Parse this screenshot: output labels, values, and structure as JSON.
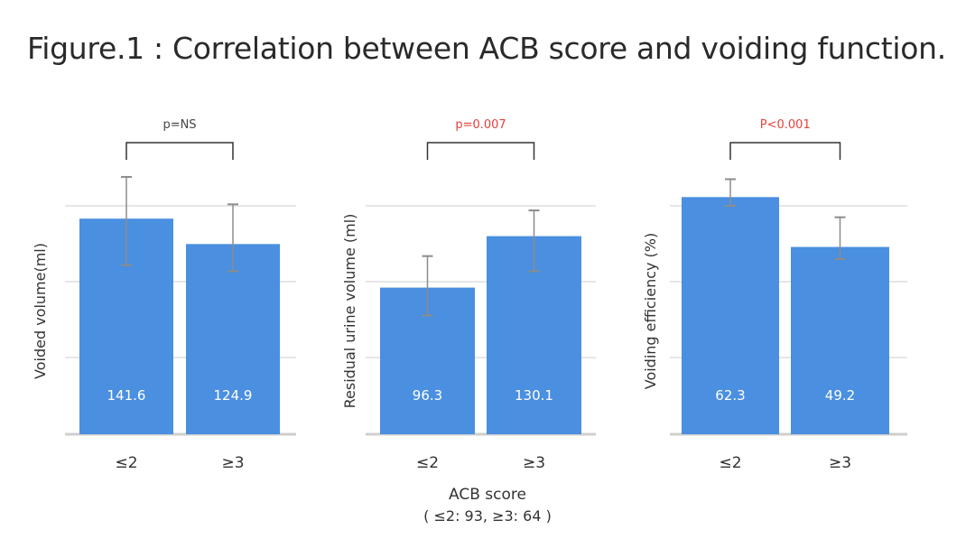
{
  "title": "Figure.1 : Correlation between ACB score and voiding function.",
  "footer": {
    "xlabel": "ACB score",
    "note": "( ≤2: 93, ≥3: 64 )"
  },
  "colors": {
    "bar": "#4a8fe0",
    "bar_label": "#ffffff",
    "error_bar": "#8c8c8c",
    "grid": "#e6e6e6",
    "baseline": "#cfcfcf",
    "sig_normal": "#444444",
    "sig_significant": "#e8403c"
  },
  "chart_data": [
    {
      "type": "bar",
      "ylabel": "Voided volume(ml)",
      "categories": [
        "≤2",
        "≥3"
      ],
      "values": [
        141.6,
        124.9
      ],
      "value_labels": [
        "141.6",
        "124.9"
      ],
      "error": [
        [
          111,
          169
        ],
        [
          107,
          151
        ]
      ],
      "ylim": [
        0,
        150
      ],
      "grid": true,
      "significance": {
        "label": "p=NS",
        "significant": false
      }
    },
    {
      "type": "bar",
      "ylabel": "Residual urine volume (ml)",
      "categories": [
        "≤2",
        "≥3"
      ],
      "values": [
        96.3,
        130.1
      ],
      "value_labels": [
        "96.3",
        "130.1"
      ],
      "error": [
        [
          78,
          117
        ],
        [
          107,
          147
        ]
      ],
      "ylim": [
        0,
        150
      ],
      "grid": true,
      "significance": {
        "label": "p=0.007",
        "significant": true
      }
    },
    {
      "type": "bar",
      "ylabel": "Voiding efficiency (%)",
      "categories": [
        "≤2",
        "≥3"
      ],
      "values": [
        62.3,
        49.2
      ],
      "value_labels": [
        "62.3",
        "49.2"
      ],
      "error": [
        [
          60,
          67
        ],
        [
          46,
          57
        ]
      ],
      "ylim": [
        0,
        60
      ],
      "grid": true,
      "significance": {
        "label": "P<0.001",
        "significant": true
      }
    }
  ]
}
